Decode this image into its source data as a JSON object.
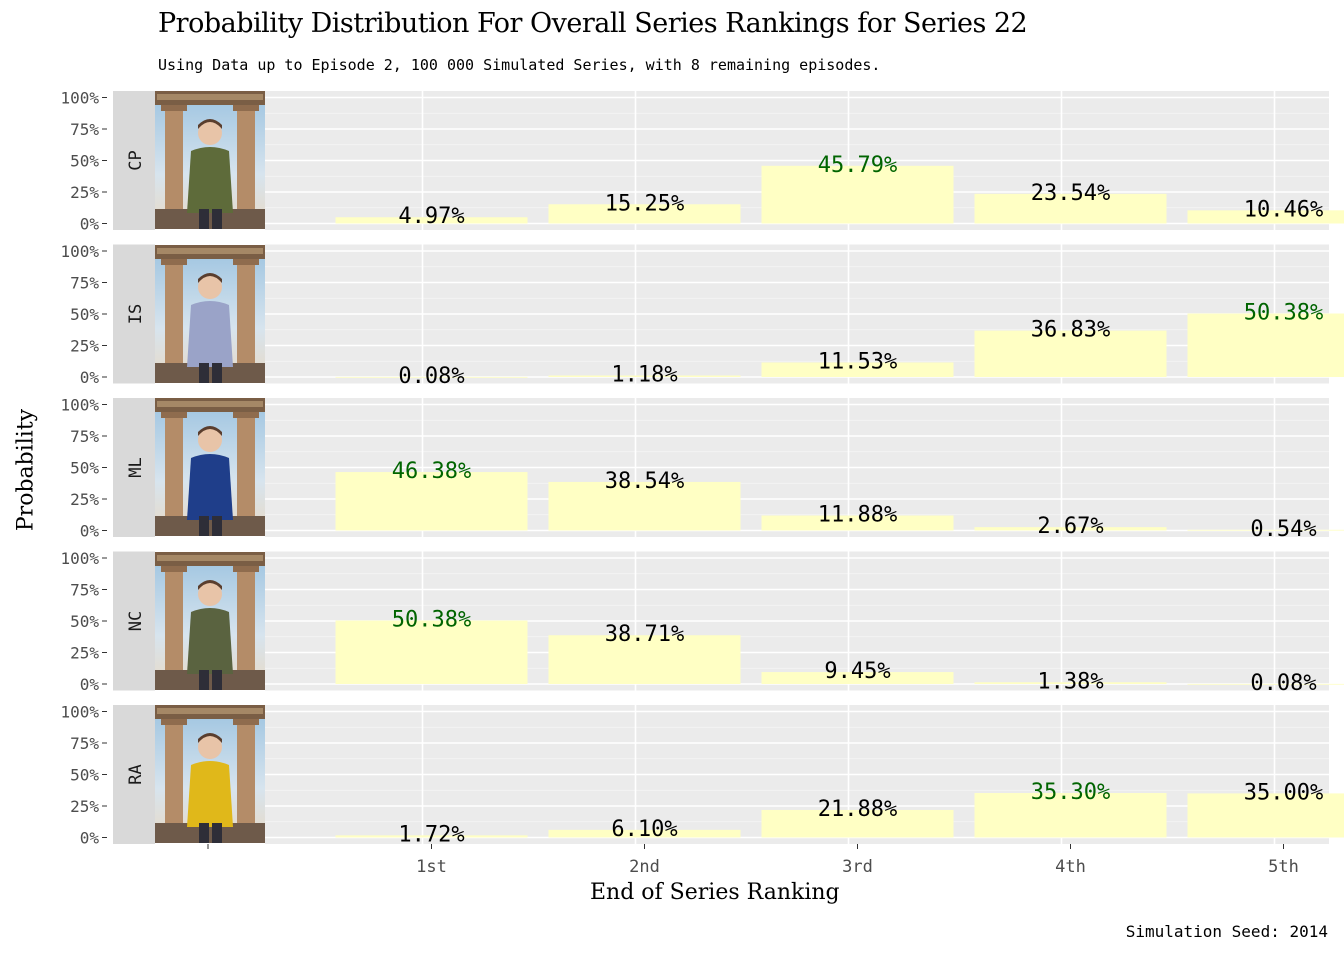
{
  "chart_data": {
    "type": "bar",
    "title": "Probability Distribution For Overall Series Rankings for Series 22",
    "subtitle": "Using Data up to Episode 2, 100 000 Simulated Series, with 8 remaining episodes.",
    "caption": "Simulation Seed: 2014",
    "xlabel": "End of Series Ranking",
    "ylabel": "Probability",
    "categories": [
      "1st",
      "2nd",
      "3rd",
      "4th",
      "5th"
    ],
    "yticks": [
      "0%",
      "25%",
      "50%",
      "75%",
      "100%"
    ],
    "ylim": [
      0,
      100
    ],
    "grid": true,
    "legend": "none",
    "bar_color": "#FFFFC4",
    "highlight_color": "#006400",
    "label_color": "#000000",
    "panel_background": "#EBEBEB",
    "strip_background": "#D9D9D9",
    "panels": [
      {
        "strip": "CP",
        "values": [
          4.97,
          15.25,
          45.79,
          23.54,
          10.46
        ],
        "labels": [
          "4.97%",
          "15.25%",
          "45.79%",
          "23.54%",
          "10.46%"
        ],
        "highlight_index": 2
      },
      {
        "strip": "IS",
        "values": [
          0.08,
          1.18,
          11.53,
          36.83,
          50.38
        ],
        "labels": [
          "0.08%",
          "1.18%",
          "11.53%",
          "36.83%",
          "50.38%"
        ],
        "highlight_index": 4
      },
      {
        "strip": "ML",
        "values": [
          46.38,
          38.54,
          11.88,
          2.67,
          0.54
        ],
        "labels": [
          "46.38%",
          "38.54%",
          "11.88%",
          "2.67%",
          "0.54%"
        ],
        "highlight_index": 0
      },
      {
        "strip": "NC",
        "values": [
          50.38,
          38.71,
          9.45,
          1.38,
          0.08
        ],
        "labels": [
          "50.38%",
          "38.71%",
          "9.45%",
          "1.38%",
          "0.08%"
        ],
        "highlight_index": 0
      },
      {
        "strip": "RA",
        "values": [
          1.72,
          6.1,
          21.88,
          35.3,
          35.0
        ],
        "labels": [
          "1.72%",
          "6.10%",
          "21.88%",
          "35.30%",
          "35.00%"
        ],
        "highlight_index": 3
      }
    ],
    "contestant_photos": [
      {
        "strip": "CP",
        "outfit": "#5E6B3A"
      },
      {
        "strip": "IS",
        "outfit": "#9AA3C8"
      },
      {
        "strip": "ML",
        "outfit": "#1F3E8A"
      },
      {
        "strip": "NC",
        "outfit": "#5A6340"
      },
      {
        "strip": "RA",
        "outfit": "#E0B81A"
      }
    ]
  }
}
